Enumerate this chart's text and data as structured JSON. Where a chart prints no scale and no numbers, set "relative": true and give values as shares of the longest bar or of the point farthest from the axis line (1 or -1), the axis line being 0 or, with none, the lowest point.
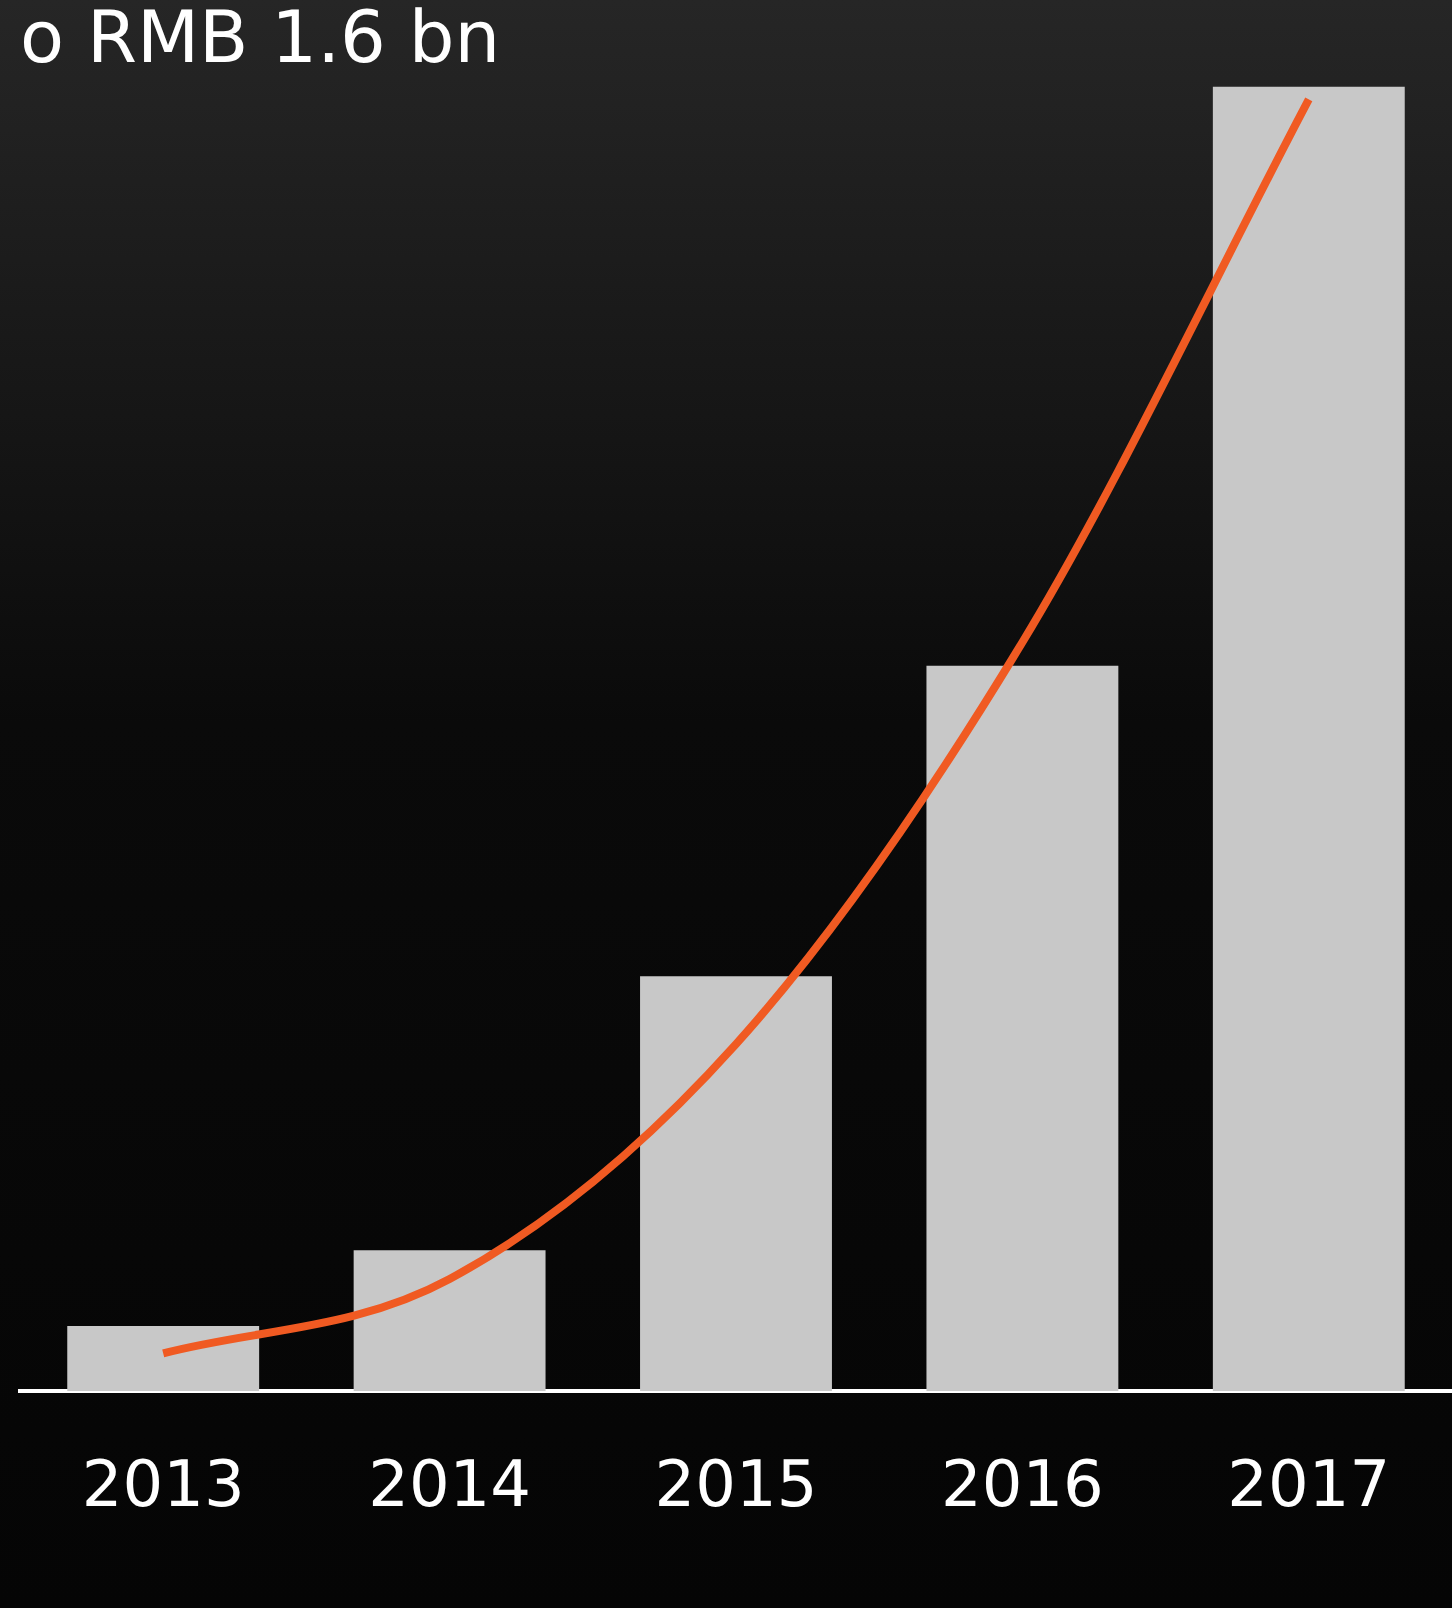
{
  "chart_data": {
    "type": "bar",
    "title": "o RMB 1.6 bn",
    "relative": true,
    "grid": false,
    "legend": false,
    "categories": [
      "2013",
      "2014",
      "2015",
      "2016",
      "2017"
    ],
    "series": [
      {
        "color": "#c8c8c8",
        "values": [
          0.05,
          0.108,
          0.318,
          0.556,
          1
        ]
      },
      {
        "type": "line",
        "color": "#f05a22",
        "values": [
          0.029,
          0.086,
          0.266,
          0.574,
          0.99
        ]
      }
    ]
  }
}
